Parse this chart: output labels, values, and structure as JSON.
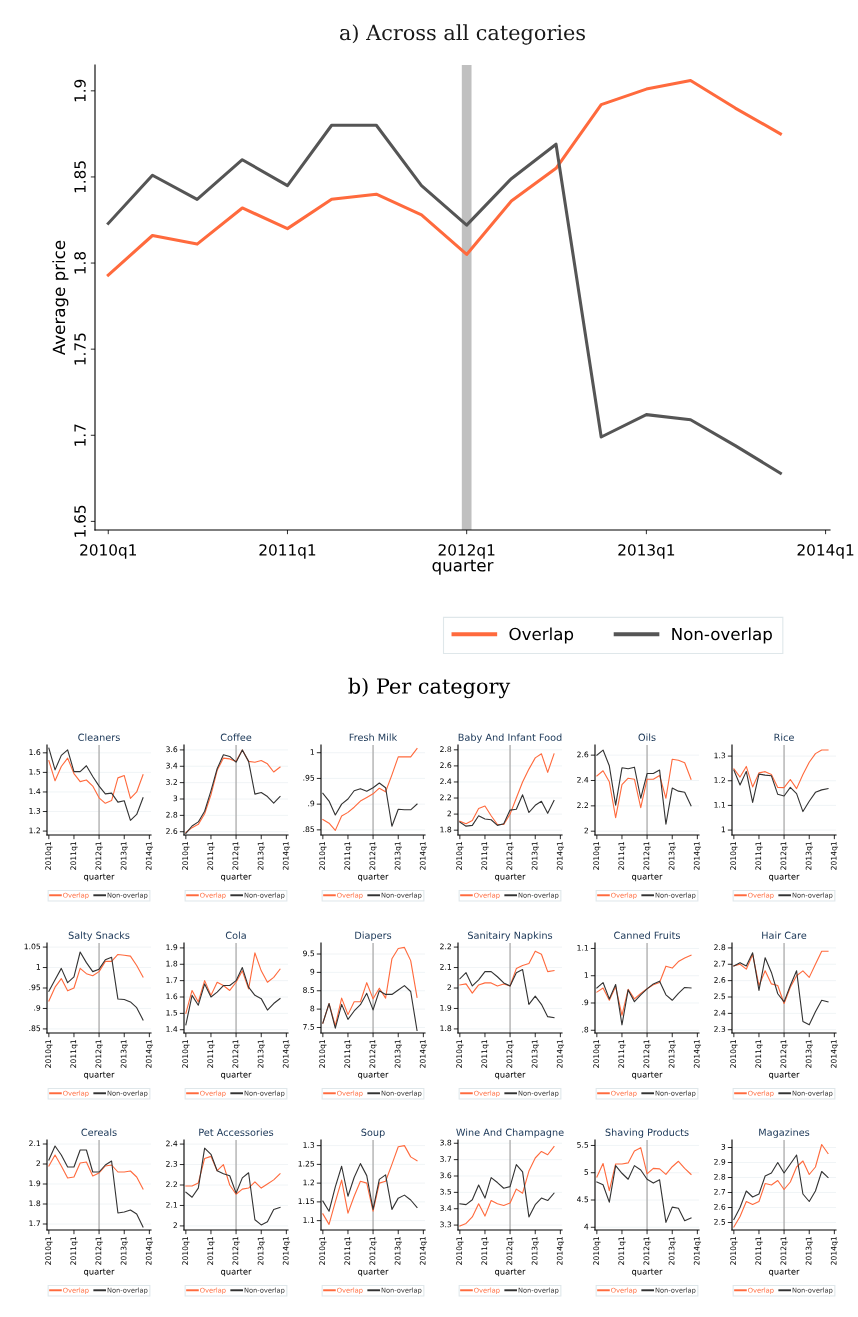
{
  "chart_data": [
    {
      "type": "line",
      "title": "a) Across all categories",
      "xlabel": "quarter",
      "ylabel": "Average price",
      "x": [
        "2010-01",
        "2010-04",
        "2010-07",
        "2010-10",
        "2011-01",
        "2011-04",
        "2011-07",
        "2011-10",
        "2012-01",
        "2012-04",
        "2012-07",
        "2012-10",
        "2013-01",
        "2013-04",
        "2013-07",
        "2013-10"
      ],
      "xlim": [
        "2009-12-05",
        "2014-01-10"
      ],
      "xticks": [
        {
          "value": "2010-01",
          "label": "2010q1"
        },
        {
          "value": "2011-01",
          "label": "2011q1"
        },
        {
          "value": "2012-01",
          "label": "2012q1"
        },
        {
          "value": "2013-01",
          "label": "2013q1"
        },
        {
          "value": "2014-01",
          "label": "2014q1"
        }
      ],
      "ylim": [
        1.645,
        1.915
      ],
      "yticks": [
        1.65,
        1.7,
        1.75,
        1.8,
        1.85,
        1.9
      ],
      "grid": false,
      "legend": "bottom",
      "ref_lines": [
        {
          "axis": "x",
          "value": "2012-01",
          "color": "#c0c0c0"
        }
      ],
      "series": [
        {
          "name": "Overlap",
          "color": "#ff6a3d",
          "values": [
            1.793,
            1.816,
            1.811,
            1.832,
            1.82,
            1.837,
            1.84,
            1.828,
            1.805,
            1.836,
            1.855,
            1.892,
            1.901,
            1.906,
            1.89,
            1.875
          ]
        },
        {
          "name": "Non-overlap",
          "color": "#555555",
          "values": [
            1.823,
            1.851,
            1.837,
            1.86,
            1.845,
            1.88,
            1.88,
            1.845,
            1.822,
            1.849,
            1.869,
            1.699,
            1.712,
            1.709,
            1.694,
            1.678
          ]
        }
      ]
    },
    {
      "type": "line",
      "title": "Cleaners",
      "annotations": [
        "b) Per category"
      ],
      "xlabel": "quarter",
      "x": [
        "2010-01",
        "2010-04",
        "2010-07",
        "2010-10",
        "2011-01",
        "2011-04",
        "2011-07",
        "2011-10",
        "2012-01",
        "2012-04",
        "2012-07",
        "2012-10",
        "2013-01",
        "2013-04",
        "2013-07",
        "2013-10"
      ],
      "xlim": [
        "2009-12-05",
        "2014-01-25"
      ],
      "xticks": [
        {
          "value": "2010-01",
          "label": "2010q1"
        },
        {
          "value": "2011-01",
          "label": "2011q1"
        },
        {
          "value": "2012-01",
          "label": "2012q1"
        },
        {
          "value": "2013-01",
          "label": "2013q1"
        },
        {
          "value": "2014-01",
          "label": "2014q1"
        }
      ],
      "ylim": [
        1.18,
        1.64
      ],
      "yticks": [
        1.2,
        1.3,
        1.4,
        1.5,
        1.6
      ],
      "grid": "y",
      "legend": "bottom",
      "ref_lines": [
        {
          "axis": "x",
          "value": "2012-01",
          "color": "#b0b0b0"
        }
      ],
      "series": [
        {
          "name": "Overlap",
          "color": "#ff6a3d",
          "values": [
            1.56,
            1.457,
            1.53,
            1.573,
            1.494,
            1.453,
            1.461,
            1.43,
            1.37,
            1.342,
            1.356,
            1.472,
            1.484,
            1.367,
            1.4,
            1.488
          ]
        },
        {
          "name": "Non-overlap",
          "color": "#333333",
          "values": [
            1.624,
            1.513,
            1.587,
            1.615,
            1.504,
            1.504,
            1.534,
            1.479,
            1.43,
            1.39,
            1.394,
            1.348,
            1.355,
            1.255,
            1.285,
            1.37
          ]
        }
      ]
    },
    {
      "type": "line",
      "title": "Coffee",
      "xlabel": "quarter",
      "x": [
        "2010-01",
        "2010-04",
        "2010-07",
        "2010-10",
        "2011-01",
        "2011-04",
        "2011-07",
        "2011-10",
        "2012-01",
        "2012-04",
        "2012-07",
        "2012-10",
        "2013-01",
        "2013-04",
        "2013-07",
        "2013-10"
      ],
      "xlim": [
        "2009-12-05",
        "2014-01-25"
      ],
      "xticks": [
        {
          "value": "2010-01",
          "label": "2010q1"
        },
        {
          "value": "2011-01",
          "label": "2011q1"
        },
        {
          "value": "2012-01",
          "label": "2012q1"
        },
        {
          "value": "2013-01",
          "label": "2013q1"
        },
        {
          "value": "2014-01",
          "label": "2014q1"
        }
      ],
      "ylim": [
        2.56,
        3.66
      ],
      "yticks": [
        2.6,
        2.8,
        3,
        3.2,
        3.4,
        3.6
      ],
      "grid": "y",
      "legend": "bottom",
      "ref_lines": [
        {
          "axis": "x",
          "value": "2012-01",
          "color": "#b0b0b0"
        }
      ],
      "series": [
        {
          "name": "Overlap",
          "color": "#ff6a3d",
          "values": [
            2.59,
            2.65,
            2.69,
            2.82,
            3.05,
            3.35,
            3.5,
            3.49,
            3.46,
            3.6,
            3.46,
            3.45,
            3.47,
            3.43,
            3.33,
            3.39
          ]
        },
        {
          "name": "Non-overlap",
          "color": "#333333",
          "values": [
            2.58,
            2.67,
            2.72,
            2.85,
            3.1,
            3.37,
            3.54,
            3.52,
            3.45,
            3.6,
            3.46,
            3.06,
            3.08,
            3.03,
            2.95,
            3.03
          ]
        }
      ]
    },
    {
      "type": "line",
      "title": "Fresh Milk",
      "xlabel": "quarter",
      "x": [
        "2010-01",
        "2010-04",
        "2010-07",
        "2010-10",
        "2011-01",
        "2011-04",
        "2011-07",
        "2011-10",
        "2012-01",
        "2012-04",
        "2012-07",
        "2012-10",
        "2013-01",
        "2013-04",
        "2013-07",
        "2013-10"
      ],
      "xlim": [
        "2009-12-05",
        "2014-01-25"
      ],
      "xticks": [
        {
          "value": "2010-01",
          "label": "2010q1"
        },
        {
          "value": "2011-01",
          "label": "2011q1"
        },
        {
          "value": "2012-01",
          "label": "2012q1"
        },
        {
          "value": "2013-01",
          "label": "2013q1"
        },
        {
          "value": "2014-01",
          "label": "2014q1"
        }
      ],
      "ylim": [
        0.84,
        1.015
      ],
      "yticks": [
        {
          "value": 0.85,
          "label": ".85"
        },
        {
          "value": 0.9,
          "label": ".9"
        },
        {
          "value": 0.95,
          "label": ".95"
        },
        1
      ],
      "grid": "y",
      "legend": "bottom",
      "ref_lines": [
        {
          "axis": "x",
          "value": "2012-01",
          "color": "#b0b0b0"
        }
      ],
      "series": [
        {
          "name": "Overlap",
          "color": "#ff6a3d",
          "values": [
            0.87,
            0.863,
            0.849,
            0.877,
            0.884,
            0.894,
            0.906,
            0.913,
            0.92,
            0.931,
            0.924,
            0.957,
            0.992,
            0.992,
            0.992,
            1.008
          ]
        },
        {
          "name": "Non-overlap",
          "color": "#333333",
          "values": [
            0.921,
            0.906,
            0.879,
            0.9,
            0.91,
            0.926,
            0.93,
            0.925,
            0.932,
            0.941,
            0.932,
            0.857,
            0.89,
            0.889,
            0.889,
            0.9
          ]
        }
      ]
    },
    {
      "type": "line",
      "title": "Baby And Infant Food",
      "xlabel": "quarter",
      "x": [
        "2010-01",
        "2010-04",
        "2010-07",
        "2010-10",
        "2011-01",
        "2011-04",
        "2011-07",
        "2011-10",
        "2012-01",
        "2012-04",
        "2012-07",
        "2012-10",
        "2013-01",
        "2013-04",
        "2013-07",
        "2013-10"
      ],
      "xlim": [
        "2009-12-05",
        "2014-01-25"
      ],
      "xticks": [
        {
          "value": "2010-01",
          "label": "2010q1"
        },
        {
          "value": "2011-01",
          "label": "2011q1"
        },
        {
          "value": "2012-01",
          "label": "2012q1"
        },
        {
          "value": "2013-01",
          "label": "2013q1"
        },
        {
          "value": "2014-01",
          "label": "2014q1"
        }
      ],
      "ylim": [
        1.74,
        2.86
      ],
      "yticks": [
        1.8,
        2,
        2.2,
        2.4,
        2.6,
        2.8
      ],
      "grid": "y",
      "legend": "bottom",
      "ref_lines": [
        {
          "axis": "x",
          "value": "2012-01",
          "color": "#b0b0b0"
        }
      ],
      "series": [
        {
          "name": "Overlap",
          "color": "#ff6a3d",
          "values": [
            1.91,
            1.88,
            1.92,
            2.07,
            2.1,
            1.98,
            1.87,
            1.87,
            2.0,
            2.2,
            2.4,
            2.56,
            2.7,
            2.75,
            2.52,
            2.75
          ]
        },
        {
          "name": "Non-overlap",
          "color": "#333333",
          "values": [
            1.9,
            1.85,
            1.86,
            1.98,
            1.94,
            1.93,
            1.86,
            1.88,
            2.05,
            2.06,
            2.24,
            2.02,
            2.11,
            2.16,
            2.01,
            2.17
          ]
        }
      ]
    },
    {
      "type": "line",
      "title": "Oils",
      "xlabel": "quarter",
      "x": [
        "2010-01",
        "2010-04",
        "2010-07",
        "2010-10",
        "2011-01",
        "2011-04",
        "2011-07",
        "2011-10",
        "2012-01",
        "2012-04",
        "2012-07",
        "2012-10",
        "2013-01",
        "2013-04",
        "2013-07",
        "2013-10"
      ],
      "xlim": [
        "2009-12-05",
        "2014-01-25"
      ],
      "xticks": [
        {
          "value": "2010-01",
          "label": "2010q1"
        },
        {
          "value": "2011-01",
          "label": "2011q1"
        },
        {
          "value": "2012-01",
          "label": "2012q1"
        },
        {
          "value": "2013-01",
          "label": "2013q1"
        },
        {
          "value": "2014-01",
          "label": "2014q1"
        }
      ],
      "ylim": [
        1.97,
        2.68
      ],
      "yticks": [
        2,
        2.2,
        2.4,
        2.6
      ],
      "grid": "y",
      "legend": "bottom",
      "ref_lines": [
        {
          "axis": "x",
          "value": "2012-01",
          "color": "#b0b0b0"
        }
      ],
      "series": [
        {
          "name": "Overlap",
          "color": "#ff6a3d",
          "values": [
            2.436,
            2.477,
            2.39,
            2.107,
            2.368,
            2.418,
            2.41,
            2.186,
            2.41,
            2.41,
            2.44,
            2.26,
            2.568,
            2.56,
            2.54,
            2.41
          ]
        },
        {
          "name": "Non-overlap",
          "color": "#333333",
          "values": [
            2.6,
            2.64,
            2.516,
            2.205,
            2.5,
            2.493,
            2.505,
            2.26,
            2.455,
            2.455,
            2.482,
            2.055,
            2.34,
            2.316,
            2.307,
            2.2
          ]
        }
      ]
    },
    {
      "type": "line",
      "title": "Rice",
      "xlabel": "quarter",
      "x": [
        "2010-01",
        "2010-04",
        "2010-07",
        "2010-10",
        "2011-01",
        "2011-04",
        "2011-07",
        "2011-10",
        "2012-01",
        "2012-04",
        "2012-07",
        "2012-10",
        "2013-01",
        "2013-04",
        "2013-07",
        "2013-10"
      ],
      "xlim": [
        "2009-12-05",
        "2014-01-25"
      ],
      "xticks": [
        {
          "value": "2010-01",
          "label": "2010q1"
        },
        {
          "value": "2011-01",
          "label": "2011q1"
        },
        {
          "value": "2012-01",
          "label": "2012q1"
        },
        {
          "value": "2013-01",
          "label": "2013q1"
        },
        {
          "value": "2014-01",
          "label": "2014q1"
        }
      ],
      "ylim": [
        0.98,
        1.345
      ],
      "yticks": [
        1,
        1.1,
        1.2,
        1.3
      ],
      "grid": "y",
      "legend": "bottom",
      "ref_lines": [
        {
          "axis": "x",
          "value": "2012-01",
          "color": "#b0b0b0"
        }
      ],
      "series": [
        {
          "name": "Overlap",
          "color": "#ff6a3d",
          "values": [
            1.248,
            1.215,
            1.258,
            1.175,
            1.232,
            1.237,
            1.225,
            1.173,
            1.172,
            1.205,
            1.168,
            1.225,
            1.275,
            1.31,
            1.325,
            1.325
          ]
        },
        {
          "name": "Non-overlap",
          "color": "#333333",
          "values": [
            1.243,
            1.183,
            1.238,
            1.112,
            1.227,
            1.223,
            1.22,
            1.145,
            1.138,
            1.173,
            1.148,
            1.075,
            1.117,
            1.153,
            1.163,
            1.168
          ]
        }
      ]
    },
    {
      "type": "line",
      "title": "Salty Snacks",
      "xlabel": "quarter",
      "x": [
        "2010-01",
        "2010-04",
        "2010-07",
        "2010-10",
        "2011-01",
        "2011-04",
        "2011-07",
        "2011-10",
        "2012-01",
        "2012-04",
        "2012-07",
        "2012-10",
        "2013-01",
        "2013-04",
        "2013-07",
        "2013-10"
      ],
      "xlim": [
        "2009-12-05",
        "2014-01-25"
      ],
      "xticks": [
        {
          "value": "2010-01",
          "label": "2010q1"
        },
        {
          "value": "2011-01",
          "label": "2011q1"
        },
        {
          "value": "2012-01",
          "label": "2012q1"
        },
        {
          "value": "2013-01",
          "label": "2013q1"
        },
        {
          "value": "2014-01",
          "label": "2014q1"
        }
      ],
      "ylim": [
        0.84,
        1.06
      ],
      "yticks": [
        {
          "value": 0.85,
          "label": ".85"
        },
        {
          "value": 0.9,
          "label": ".9"
        },
        {
          "value": 0.95,
          "label": ".95"
        },
        1,
        1.05
      ],
      "grid": "y",
      "legend": "bottom",
      "ref_lines": [
        {
          "axis": "x",
          "value": "2012-01",
          "color": "#b0b0b0"
        }
      ],
      "series": [
        {
          "name": "Overlap",
          "color": "#ff6a3d",
          "values": [
            0.918,
            0.952,
            0.973,
            0.943,
            0.95,
            0.998,
            0.985,
            0.98,
            0.99,
            1.015,
            1.015,
            1.032,
            1.03,
            1.028,
            1.005,
            0.977
          ]
        },
        {
          "name": "Non-overlap",
          "color": "#333333",
          "values": [
            0.942,
            0.97,
            0.998,
            0.963,
            0.977,
            1.038,
            1.012,
            0.99,
            0.996,
            1.019,
            1.025,
            0.923,
            0.922,
            0.916,
            0.902,
            0.872
          ]
        }
      ]
    },
    {
      "type": "line",
      "title": "Cola",
      "xlabel": "quarter",
      "x": [
        "2010-01",
        "2010-04",
        "2010-07",
        "2010-10",
        "2011-01",
        "2011-04",
        "2011-07",
        "2011-10",
        "2012-01",
        "2012-04",
        "2012-07",
        "2012-10",
        "2013-01",
        "2013-04",
        "2013-07",
        "2013-10"
      ],
      "xlim": [
        "2009-12-05",
        "2014-01-25"
      ],
      "xticks": [
        {
          "value": "2010-01",
          "label": "2010q1"
        },
        {
          "value": "2011-01",
          "label": "2011q1"
        },
        {
          "value": "2012-01",
          "label": "2012q1"
        },
        {
          "value": "2013-01",
          "label": "2013q1"
        },
        {
          "value": "2014-01",
          "label": "2014q1"
        }
      ],
      "ylim": [
        1.38,
        1.93
      ],
      "yticks": [
        1.4,
        1.5,
        1.6,
        1.7,
        1.8,
        1.9
      ],
      "grid": "y",
      "legend": "bottom",
      "ref_lines": [
        {
          "axis": "x",
          "value": "2012-01",
          "color": "#b0b0b0"
        }
      ],
      "series": [
        {
          "name": "Overlap",
          "color": "#ff6a3d",
          "values": [
            1.5,
            1.64,
            1.57,
            1.7,
            1.61,
            1.69,
            1.67,
            1.64,
            1.69,
            1.76,
            1.65,
            1.87,
            1.76,
            1.69,
            1.72,
            1.77
          ]
        },
        {
          "name": "Non-overlap",
          "color": "#333333",
          "values": [
            1.43,
            1.61,
            1.55,
            1.68,
            1.6,
            1.63,
            1.67,
            1.67,
            1.7,
            1.78,
            1.66,
            1.61,
            1.59,
            1.52,
            1.56,
            1.59
          ]
        }
      ]
    },
    {
      "type": "line",
      "title": "Diapers",
      "xlabel": "quarter",
      "x": [
        "2010-01",
        "2010-04",
        "2010-07",
        "2010-10",
        "2011-01",
        "2011-04",
        "2011-07",
        "2011-10",
        "2012-01",
        "2012-04",
        "2012-07",
        "2012-10",
        "2013-01",
        "2013-04",
        "2013-07",
        "2013-10"
      ],
      "xlim": [
        "2009-12-05",
        "2014-01-25"
      ],
      "xticks": [
        {
          "value": "2010-01",
          "label": "2010q1"
        },
        {
          "value": "2011-01",
          "label": "2011q1"
        },
        {
          "value": "2012-01",
          "label": "2012q1"
        },
        {
          "value": "2013-01",
          "label": "2013q1"
        },
        {
          "value": "2014-01",
          "label": "2014q1"
        }
      ],
      "ylim": [
        7.35,
        9.8
      ],
      "yticks": [
        7.5,
        8,
        8.5,
        9,
        9.5
      ],
      "grid": "y",
      "legend": "bottom",
      "ref_lines": [
        {
          "axis": "x",
          "value": "2012-01",
          "color": "#b0b0b0"
        }
      ],
      "series": [
        {
          "name": "Overlap",
          "color": "#ff6a3d",
          "values": [
            7.62,
            8.15,
            7.55,
            8.3,
            7.85,
            8.2,
            8.2,
            8.72,
            8.28,
            8.57,
            8.3,
            9.37,
            9.65,
            9.68,
            9.32,
            8.32
          ]
        },
        {
          "name": "Non-overlap",
          "color": "#333333",
          "values": [
            7.62,
            8.15,
            7.48,
            8.13,
            7.72,
            7.95,
            8.12,
            8.43,
            7.98,
            8.5,
            8.4,
            8.4,
            8.52,
            8.64,
            8.48,
            7.42
          ]
        }
      ]
    },
    {
      "type": "line",
      "title": "Sanitairy Napkins",
      "xlabel": "quarter",
      "x": [
        "2010-01",
        "2010-04",
        "2010-07",
        "2010-10",
        "2011-01",
        "2011-04",
        "2011-07",
        "2011-10",
        "2012-01",
        "2012-04",
        "2012-07",
        "2012-10",
        "2013-01",
        "2013-04",
        "2013-07",
        "2013-10"
      ],
      "xlim": [
        "2009-12-05",
        "2014-01-25"
      ],
      "xticks": [
        {
          "value": "2010-01",
          "label": "2010q1"
        },
        {
          "value": "2011-01",
          "label": "2011q1"
        },
        {
          "value": "2012-01",
          "label": "2012q1"
        },
        {
          "value": "2013-01",
          "label": "2013q1"
        },
        {
          "value": "2014-01",
          "label": "2014q1"
        }
      ],
      "ylim": [
        1.78,
        2.22
      ],
      "yticks": [
        1.8,
        1.9,
        2,
        2.1,
        2.2
      ],
      "grid": "y",
      "legend": "bottom",
      "ref_lines": [
        {
          "axis": "x",
          "value": "2012-01",
          "color": "#b0b0b0"
        }
      ],
      "series": [
        {
          "name": "Overlap",
          "color": "#ff6a3d",
          "values": [
            2.015,
            2.02,
            1.975,
            2.015,
            2.025,
            2.025,
            2.01,
            2.02,
            2.01,
            2.095,
            2.11,
            2.12,
            2.18,
            2.165,
            2.08,
            2.085
          ]
        },
        {
          "name": "Non-overlap",
          "color": "#333333",
          "values": [
            2.045,
            2.075,
            2.01,
            2.04,
            2.08,
            2.08,
            2.055,
            2.025,
            2.01,
            2.075,
            2.09,
            1.92,
            1.96,
            1.92,
            1.86,
            1.855
          ]
        }
      ]
    },
    {
      "type": "line",
      "title": "Canned Fruits",
      "xlabel": "quarter",
      "x": [
        "2010-01",
        "2010-04",
        "2010-07",
        "2010-10",
        "2011-01",
        "2011-04",
        "2011-07",
        "2011-10",
        "2012-01",
        "2012-04",
        "2012-07",
        "2012-10",
        "2013-01",
        "2013-04",
        "2013-07",
        "2013-10"
      ],
      "xlim": [
        "2009-12-05",
        "2014-01-25"
      ],
      "xticks": [
        {
          "value": "2010-01",
          "label": "2010q1"
        },
        {
          "value": "2011-01",
          "label": "2011q1"
        },
        {
          "value": "2012-01",
          "label": "2012q1"
        },
        {
          "value": "2013-01",
          "label": "2013q1"
        },
        {
          "value": "2014-01",
          "label": "2014q1"
        }
      ],
      "ylim": [
        0.79,
        1.12
      ],
      "yticks": [
        {
          "value": 0.8,
          "label": ".8"
        },
        {
          "value": 0.9,
          "label": ".9"
        },
        1,
        1.1
      ],
      "grid": "y",
      "legend": "bottom",
      "ref_lines": [
        {
          "axis": "x",
          "value": "2012-01",
          "color": "#b0b0b0"
        }
      ],
      "series": [
        {
          "name": "Overlap",
          "color": "#ff6a3d",
          "values": [
            0.94,
            0.955,
            0.91,
            0.96,
            0.855,
            0.95,
            0.915,
            0.935,
            0.952,
            0.967,
            0.975,
            1.035,
            1.028,
            1.052,
            1.065,
            1.075
          ]
        },
        {
          "name": "Non-overlap",
          "color": "#333333",
          "values": [
            0.955,
            0.975,
            0.915,
            0.968,
            0.82,
            0.948,
            0.905,
            0.93,
            0.952,
            0.97,
            0.98,
            0.93,
            0.91,
            0.935,
            0.957,
            0.955
          ]
        }
      ]
    },
    {
      "type": "line",
      "title": "Hair Care",
      "xlabel": "quarter",
      "x": [
        "2010-01",
        "2010-04",
        "2010-07",
        "2010-10",
        "2011-01",
        "2011-04",
        "2011-07",
        "2011-10",
        "2012-01",
        "2012-04",
        "2012-07",
        "2012-10",
        "2013-01",
        "2013-04",
        "2013-07",
        "2013-10"
      ],
      "xlim": [
        "2009-12-05",
        "2014-01-25"
      ],
      "xticks": [
        {
          "value": "2010-01",
          "label": "2010q1"
        },
        {
          "value": "2011-01",
          "label": "2011q1"
        },
        {
          "value": "2012-01",
          "label": "2012q1"
        },
        {
          "value": "2013-01",
          "label": "2013q1"
        },
        {
          "value": "2014-01",
          "label": "2014q1"
        }
      ],
      "ylim": [
        2.28,
        2.83
      ],
      "yticks": [
        2.3,
        2.4,
        2.5,
        2.6,
        2.7,
        2.8
      ],
      "grid": "y",
      "legend": "bottom",
      "ref_lines": [
        {
          "axis": "x",
          "value": "2012-01",
          "color": "#b0b0b0"
        }
      ],
      "series": [
        {
          "name": "Overlap",
          "color": "#ff6a3d",
          "values": [
            2.69,
            2.7,
            2.67,
            2.76,
            2.57,
            2.66,
            2.58,
            2.57,
            2.46,
            2.56,
            2.63,
            2.66,
            2.62,
            2.7,
            2.78,
            2.78
          ]
        },
        {
          "name": "Non-overlap",
          "color": "#333333",
          "values": [
            2.69,
            2.71,
            2.69,
            2.77,
            2.54,
            2.74,
            2.65,
            2.52,
            2.47,
            2.57,
            2.66,
            2.35,
            2.33,
            2.41,
            2.48,
            2.47
          ]
        }
      ]
    },
    {
      "type": "line",
      "title": "Cereals",
      "xlabel": "quarter",
      "x": [
        "2010-01",
        "2010-04",
        "2010-07",
        "2010-10",
        "2011-01",
        "2011-04",
        "2011-07",
        "2011-10",
        "2012-01",
        "2012-04",
        "2012-07",
        "2012-10",
        "2013-01",
        "2013-04",
        "2013-07",
        "2013-10"
      ],
      "xlim": [
        "2009-12-05",
        "2014-01-25"
      ],
      "xticks": [
        {
          "value": "2010-01",
          "label": "2010q1"
        },
        {
          "value": "2011-01",
          "label": "2011q1"
        },
        {
          "value": "2012-01",
          "label": "2012q1"
        },
        {
          "value": "2013-01",
          "label": "2013q1"
        },
        {
          "value": "2014-01",
          "label": "2014q1"
        }
      ],
      "ylim": [
        1.67,
        2.12
      ],
      "yticks": [
        1.7,
        1.8,
        1.9,
        2,
        2.1
      ],
      "grid": "y",
      "legend": "bottom",
      "ref_lines": [
        {
          "axis": "x",
          "value": "2012-01",
          "color": "#b0b0b0"
        }
      ],
      "series": [
        {
          "name": "Overlap",
          "color": "#ff6a3d",
          "values": [
            1.99,
            2.045,
            1.99,
            1.93,
            1.935,
            2.005,
            2.01,
            1.94,
            1.955,
            1.99,
            1.995,
            1.96,
            1.96,
            1.965,
            1.935,
            1.875
          ]
        },
        {
          "name": "Non-overlap",
          "color": "#333333",
          "values": [
            2.02,
            2.09,
            2.045,
            1.985,
            1.985,
            2.07,
            2.07,
            1.96,
            1.96,
            1.995,
            2.015,
            1.755,
            1.76,
            1.77,
            1.75,
            1.685
          ]
        }
      ]
    },
    {
      "type": "line",
      "title": "Pet Accessories",
      "xlabel": "quarter",
      "x": [
        "2010-01",
        "2010-04",
        "2010-07",
        "2010-10",
        "2011-01",
        "2011-04",
        "2011-07",
        "2011-10",
        "2012-01",
        "2012-04",
        "2012-07",
        "2012-10",
        "2013-01",
        "2013-04",
        "2013-07",
        "2013-10"
      ],
      "xlim": [
        "2009-12-05",
        "2014-01-25"
      ],
      "xticks": [
        {
          "value": "2010-01",
          "label": "2010q1"
        },
        {
          "value": "2011-01",
          "label": "2011q1"
        },
        {
          "value": "2012-01",
          "label": "2012q1"
        },
        {
          "value": "2013-01",
          "label": "2013q1"
        },
        {
          "value": "2014-01",
          "label": "2014q1"
        }
      ],
      "ylim": [
        1.98,
        2.42
      ],
      "yticks": [
        2,
        2.1,
        2.2,
        2.3,
        2.4
      ],
      "grid": "y",
      "legend": "bottom",
      "ref_lines": [
        {
          "axis": "x",
          "value": "2012-01",
          "color": "#b0b0b0"
        }
      ],
      "series": [
        {
          "name": "Overlap",
          "color": "#ff6a3d",
          "values": [
            2.195,
            2.195,
            2.21,
            2.33,
            2.34,
            2.27,
            2.3,
            2.2,
            2.155,
            2.18,
            2.185,
            2.215,
            2.185,
            2.205,
            2.225,
            2.255
          ]
        },
        {
          "name": "Non-overlap",
          "color": "#333333",
          "values": [
            2.165,
            2.14,
            2.185,
            2.38,
            2.35,
            2.27,
            2.255,
            2.245,
            2.16,
            2.235,
            2.26,
            2.03,
            2.005,
            2.02,
            2.08,
            2.09
          ]
        }
      ]
    },
    {
      "type": "line",
      "title": "Soup",
      "xlabel": "quarter",
      "x": [
        "2010-01",
        "2010-04",
        "2010-07",
        "2010-10",
        "2011-01",
        "2011-04",
        "2011-07",
        "2011-10",
        "2012-01",
        "2012-04",
        "2012-07",
        "2012-10",
        "2013-01",
        "2013-04",
        "2013-07",
        "2013-10"
      ],
      "xlim": [
        "2009-12-05",
        "2014-01-25"
      ],
      "xticks": [
        {
          "value": "2010-01",
          "label": "2010q1"
        },
        {
          "value": "2011-01",
          "label": "2011q1"
        },
        {
          "value": "2012-01",
          "label": "2012q1"
        },
        {
          "value": "2013-01",
          "label": "2013q1"
        },
        {
          "value": "2014-01",
          "label": "2014q1"
        }
      ],
      "ylim": [
        1.075,
        1.315
      ],
      "yticks": [
        1.1,
        1.15,
        1.2,
        1.25,
        1.3
      ],
      "grid": "y",
      "legend": "bottom",
      "ref_lines": [
        {
          "axis": "x",
          "value": "2012-01",
          "color": "#b0b0b0"
        }
      ],
      "series": [
        {
          "name": "Overlap",
          "color": "#ff6a3d",
          "values": [
            1.118,
            1.09,
            1.15,
            1.208,
            1.12,
            1.165,
            1.205,
            1.2,
            1.125,
            1.2,
            1.205,
            1.25,
            1.297,
            1.3,
            1.27,
            1.26
          ]
        },
        {
          "name": "Non-overlap",
          "color": "#333333",
          "values": [
            1.152,
            1.125,
            1.19,
            1.245,
            1.165,
            1.215,
            1.252,
            1.22,
            1.13,
            1.21,
            1.222,
            1.13,
            1.16,
            1.168,
            1.155,
            1.135
          ]
        }
      ]
    },
    {
      "type": "line",
      "title": "Wine And Champagne",
      "xlabel": "quarter",
      "x": [
        "2010-01",
        "2010-04",
        "2010-07",
        "2010-10",
        "2011-01",
        "2011-04",
        "2011-07",
        "2011-10",
        "2012-01",
        "2012-04",
        "2012-07",
        "2012-10",
        "2013-01",
        "2013-04",
        "2013-07",
        "2013-10"
      ],
      "xlim": [
        "2009-12-05",
        "2014-01-25"
      ],
      "xticks": [
        {
          "value": "2010-01",
          "label": "2010q1"
        },
        {
          "value": "2011-01",
          "label": "2011q1"
        },
        {
          "value": "2012-01",
          "label": "2012q1"
        },
        {
          "value": "2013-01",
          "label": "2013q1"
        },
        {
          "value": "2014-01",
          "label": "2014q1"
        }
      ],
      "ylim": [
        3.27,
        3.82
      ],
      "yticks": [
        3.3,
        3.4,
        3.5,
        3.6,
        3.7,
        3.8
      ],
      "grid": "y",
      "legend": "bottom",
      "ref_lines": [
        {
          "axis": "x",
          "value": "2012-01",
          "color": "#b0b0b0"
        }
      ],
      "series": [
        {
          "name": "Overlap",
          "color": "#ff6a3d",
          "values": [
            3.295,
            3.31,
            3.35,
            3.43,
            3.355,
            3.45,
            3.43,
            3.42,
            3.435,
            3.52,
            3.495,
            3.63,
            3.71,
            3.75,
            3.73,
            3.78
          ]
        },
        {
          "name": "Non-overlap",
          "color": "#333333",
          "values": [
            3.43,
            3.425,
            3.455,
            3.545,
            3.465,
            3.59,
            3.56,
            3.525,
            3.535,
            3.67,
            3.625,
            3.35,
            3.425,
            3.465,
            3.45,
            3.495
          ]
        }
      ]
    },
    {
      "type": "line",
      "title": "Shaving Products",
      "xlabel": "quarter",
      "x": [
        "2010-01",
        "2010-04",
        "2010-07",
        "2010-10",
        "2011-01",
        "2011-04",
        "2011-07",
        "2011-10",
        "2012-01",
        "2012-04",
        "2012-07",
        "2012-10",
        "2013-01",
        "2013-04",
        "2013-07",
        "2013-10"
      ],
      "xlim": [
        "2009-12-05",
        "2014-01-25"
      ],
      "xticks": [
        {
          "value": "2010-01",
          "label": "2010q1"
        },
        {
          "value": "2011-01",
          "label": "2011q1"
        },
        {
          "value": "2012-01",
          "label": "2012q1"
        },
        {
          "value": "2013-01",
          "label": "2013q1"
        },
        {
          "value": "2014-01",
          "label": "2014q1"
        }
      ],
      "ylim": [
        3.95,
        5.6
      ],
      "yticks": [
        4,
        4.5,
        5,
        5.5
      ],
      "grid": "y",
      "legend": "bottom",
      "ref_lines": [
        {
          "axis": "x",
          "value": "2012-01",
          "color": "#b0b0b0"
        }
      ],
      "series": [
        {
          "name": "Overlap",
          "color": "#ff6a3d",
          "values": [
            4.92,
            5.17,
            4.67,
            5.16,
            5.16,
            5.18,
            5.4,
            5.46,
            4.98,
            5.08,
            5.07,
            4.97,
            5.11,
            5.21,
            5.08,
            4.97
          ]
        },
        {
          "name": "Non-overlap",
          "color": "#333333",
          "values": [
            4.83,
            4.78,
            4.46,
            5.13,
            4.99,
            4.88,
            5.13,
            5.05,
            4.88,
            4.81,
            4.87,
            4.09,
            4.37,
            4.35,
            4.12,
            4.17
          ]
        }
      ]
    },
    {
      "type": "line",
      "title": "Magazines",
      "xlabel": "quarter",
      "x": [
        "2010-01",
        "2010-04",
        "2010-07",
        "2010-10",
        "2011-01",
        "2011-04",
        "2011-07",
        "2011-10",
        "2012-01",
        "2012-04",
        "2012-07",
        "2012-10",
        "2013-01",
        "2013-04",
        "2013-07",
        "2013-10"
      ],
      "xlim": [
        "2009-12-05",
        "2014-01-25"
      ],
      "xticks": [
        {
          "value": "2010-01",
          "label": "2010q1"
        },
        {
          "value": "2011-01",
          "label": "2011q1"
        },
        {
          "value": "2012-01",
          "label": "2012q1"
        },
        {
          "value": "2013-01",
          "label": "2013q1"
        },
        {
          "value": "2014-01",
          "label": "2014q1"
        }
      ],
      "ylim": [
        2.45,
        3.05
      ],
      "yticks": [
        2.5,
        2.6,
        2.7,
        2.8,
        2.9,
        3
      ],
      "grid": "y",
      "legend": "bottom",
      "ref_lines": [
        {
          "axis": "x",
          "value": "2012-01",
          "color": "#b0b0b0"
        }
      ],
      "series": [
        {
          "name": "Overlap",
          "color": "#ff6a3d",
          "values": [
            2.47,
            2.54,
            2.64,
            2.62,
            2.64,
            2.76,
            2.75,
            2.78,
            2.72,
            2.77,
            2.87,
            2.91,
            2.82,
            2.87,
            3.02,
            2.96
          ]
        },
        {
          "name": "Non-overlap",
          "color": "#333333",
          "values": [
            2.52,
            2.6,
            2.71,
            2.67,
            2.69,
            2.81,
            2.83,
            2.9,
            2.83,
            2.89,
            2.95,
            2.69,
            2.64,
            2.71,
            2.84,
            2.8
          ]
        }
      ]
    }
  ]
}
